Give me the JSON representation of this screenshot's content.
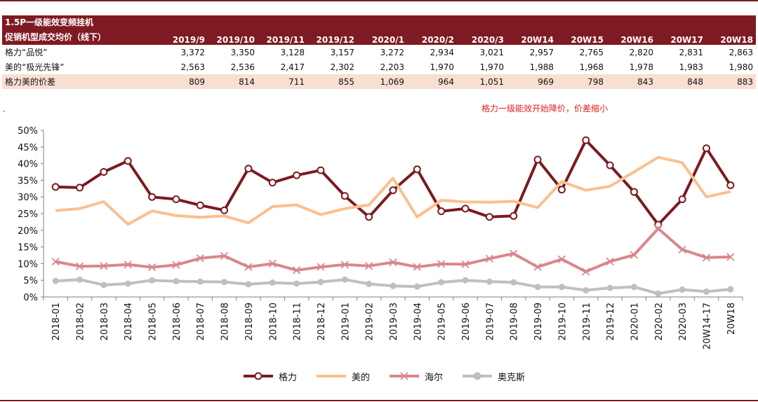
{
  "table": {
    "header_line1": "1.5P一级能效变频挂机",
    "header_line2": "促销机型成交均价（线下）",
    "columns": [
      "2019/9",
      "2019/10",
      "2019/11",
      "2019/12",
      "2020/1",
      "2020/2",
      "2020/3",
      "20W14",
      "20W15",
      "20W16",
      "20W17",
      "20W18"
    ],
    "rows": [
      {
        "label": "格力“品悦”",
        "values": [
          "3,372",
          "3,350",
          "3,128",
          "3,157",
          "3,272",
          "2,934",
          "3,021",
          "2,957",
          "2,765",
          "2,820",
          "2,831",
          "2,863"
        ]
      },
      {
        "label": "美的“极光先锋”",
        "values": [
          "2,563",
          "2,536",
          "2,417",
          "2,302",
          "2,203",
          "1,970",
          "1,970",
          "1,988",
          "1,968",
          "1,978",
          "1,983",
          "1,980"
        ]
      },
      {
        "label": "格力美的价差",
        "values": [
          "809",
          "814",
          "711",
          "855",
          "1,069",
          "964",
          "1,051",
          "969",
          "798",
          "843",
          "848",
          "883"
        ]
      }
    ]
  },
  "note": "格力一级能效开始降价，价差缩小",
  "chart_data": {
    "type": "line",
    "categories": [
      "2018-01",
      "2018-02",
      "2018-03",
      "2018-04",
      "2018-05",
      "2018-06",
      "2018-07",
      "2018-08",
      "2018-09",
      "2018-10",
      "2018-11",
      "2018-12",
      "2019-01",
      "2019-02",
      "2019-03",
      "2019-04",
      "2019-05",
      "2019-06",
      "2019-07",
      "2019-08",
      "2019-09",
      "2019-10",
      "2019-11",
      "2019-12",
      "2020-01",
      "2020-02",
      "2020-03",
      "20W14-17",
      "20W18"
    ],
    "y_ticks": [
      "0%",
      "5%",
      "10%",
      "15%",
      "20%",
      "25%",
      "30%",
      "35%",
      "40%",
      "45%",
      "50%"
    ],
    "ylim": [
      0,
      50
    ],
    "y_unit": "%",
    "legend_position": "bottom",
    "series": [
      {
        "name": "格力",
        "color": "#7b1a20",
        "marker": "circle",
        "values": [
          33.0,
          32.8,
          37.5,
          40.8,
          30.0,
          29.3,
          27.5,
          26.0,
          38.5,
          34.3,
          36.5,
          38.0,
          30.3,
          24.0,
          32.0,
          38.3,
          25.7,
          26.5,
          24.0,
          24.3,
          41.2,
          32.2,
          47.0,
          39.5,
          31.5,
          21.7,
          29.3,
          44.6,
          33.5
        ]
      },
      {
        "name": "美的",
        "color": "#f9c08f",
        "marker": "line",
        "values": [
          25.9,
          26.5,
          28.6,
          21.8,
          25.8,
          24.4,
          23.9,
          24.3,
          22.2,
          27.1,
          27.6,
          24.7,
          26.5,
          27.6,
          35.6,
          24.0,
          29.0,
          28.5,
          28.4,
          28.7,
          26.8,
          34.6,
          32.0,
          33.2,
          37.5,
          41.9,
          40.3,
          30.0,
          31.6
        ]
      },
      {
        "name": "海尔",
        "color": "#d9878c",
        "marker": "x",
        "values": [
          10.6,
          9.2,
          9.3,
          9.7,
          8.9,
          9.6,
          11.6,
          12.3,
          9.0,
          10.0,
          8.0,
          9.0,
          9.7,
          9.3,
          10.4,
          9.0,
          9.9,
          9.8,
          11.5,
          13.0,
          9.0,
          11.3,
          7.6,
          10.6,
          12.6,
          20.5,
          14.2,
          11.8,
          12.0
        ]
      },
      {
        "name": "奥克斯",
        "color": "#bfbfbf",
        "marker": "circle-filled",
        "values": [
          4.8,
          5.2,
          3.6,
          4.0,
          5.0,
          4.7,
          4.6,
          4.5,
          3.8,
          4.3,
          4.0,
          4.5,
          5.2,
          3.9,
          3.3,
          3.1,
          4.4,
          5.0,
          4.6,
          4.4,
          3.0,
          3.0,
          2.0,
          2.7,
          3.0,
          1.0,
          2.2,
          1.6,
          2.3
        ]
      }
    ]
  }
}
